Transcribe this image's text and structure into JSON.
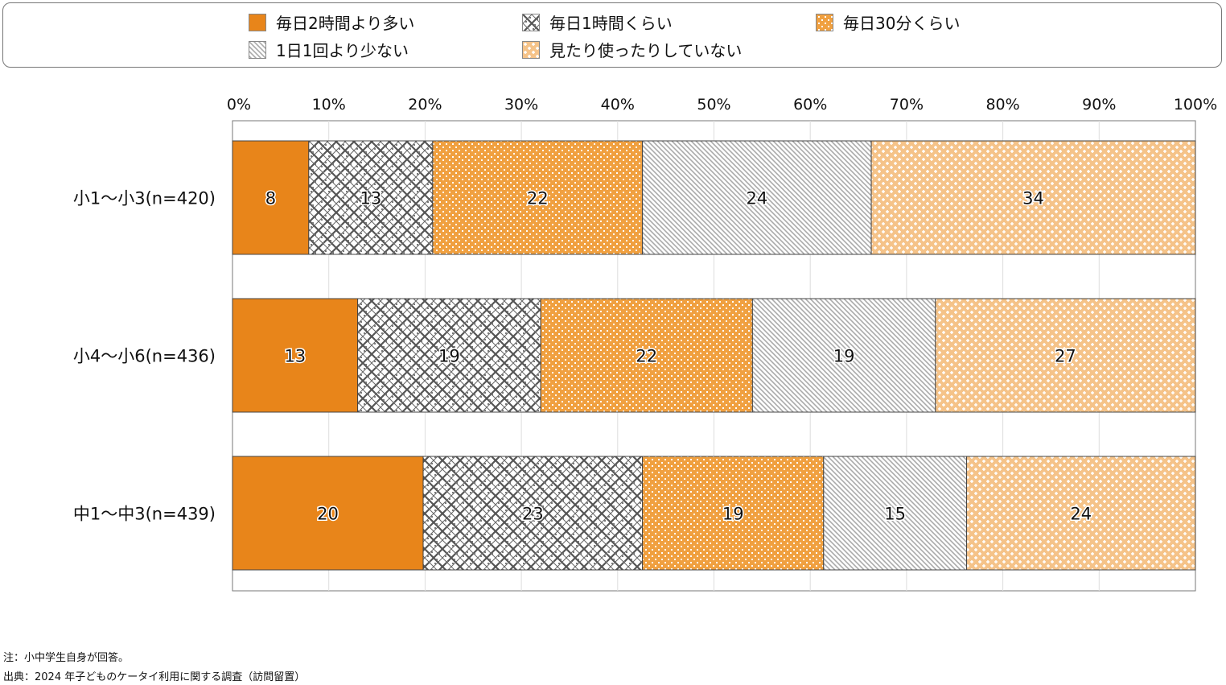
{
  "chart_data": {
    "type": "bar",
    "orientation": "horizontal-stacked-100",
    "categories": [
      "小1～小3(n=420)",
      "小4～小6(n=436)",
      "中1～中3(n=439)"
    ],
    "series": [
      {
        "name": "毎日2時間より多い",
        "values": [
          8,
          13,
          20
        ],
        "color": "#E8851A",
        "pattern": "solid"
      },
      {
        "name": "毎日1時間くらい",
        "values": [
          13,
          19,
          23
        ],
        "color": "#555555",
        "pattern": "crosshatch"
      },
      {
        "name": "毎日30分くらい",
        "values": [
          22,
          22,
          19
        ],
        "color": "#F0A040",
        "pattern": "dots"
      },
      {
        "name": "1日1回より少ない",
        "values": [
          24,
          19,
          15
        ],
        "color": "#AAAAAA",
        "pattern": "diagonal"
      },
      {
        "name": "見たり使ったりしていない",
        "values": [
          34,
          27,
          24
        ],
        "color": "#F5C389",
        "pattern": "crosses"
      }
    ],
    "xticks": [
      "0%",
      "10%",
      "20%",
      "30%",
      "40%",
      "50%",
      "60%",
      "70%",
      "80%",
      "90%",
      "100%"
    ],
    "xlim": [
      0,
      100
    ],
    "grid": true,
    "legend_position": "top"
  },
  "notes": {
    "note": "注：小中学生自身が回答。",
    "source": "出典：2024 年子どものケータイ利用に関する調査（訪問留置）"
  }
}
